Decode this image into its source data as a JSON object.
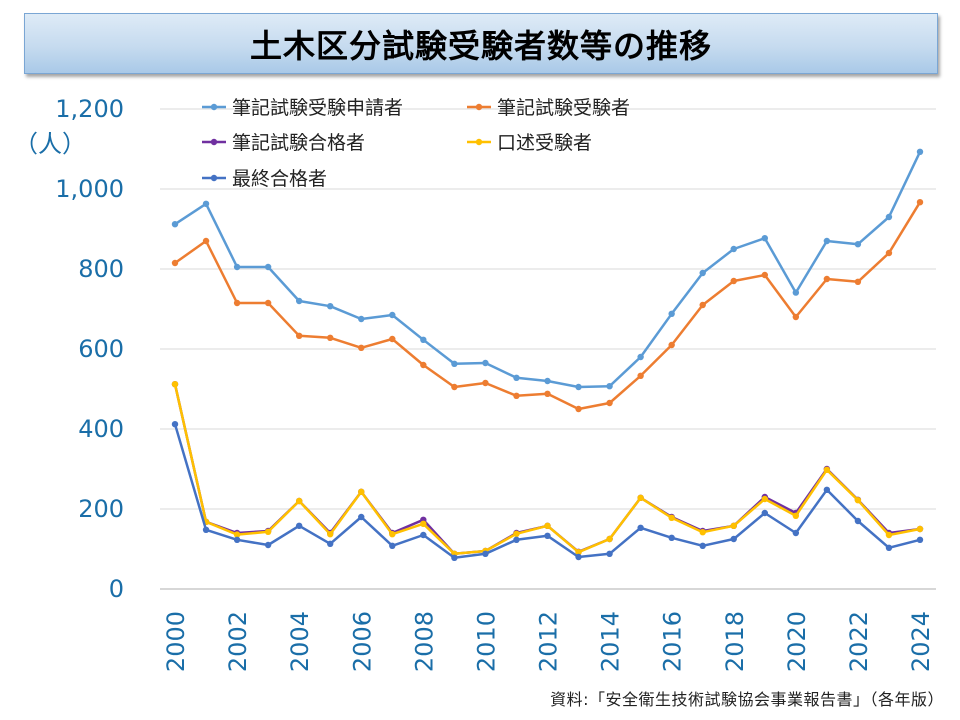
{
  "title": "土木区分試験受験者数等の推移",
  "unit_label": "（人）",
  "source": "資料:「安全衛生技術試験協会事業報告書」（各年版）",
  "chart_data": {
    "type": "line",
    "title": "土木区分試験受験者数等の推移",
    "xlabel": "",
    "ylabel": "（人）",
    "ylim": [
      0,
      1200
    ],
    "yticks": [
      0,
      200,
      400,
      600,
      800,
      1000,
      1200
    ],
    "ytick_labels": [
      "0",
      "200",
      "400",
      "600",
      "800",
      "1,000",
      "1,200"
    ],
    "x": [
      2000,
      2001,
      2002,
      2003,
      2004,
      2005,
      2006,
      2007,
      2008,
      2009,
      2010,
      2011,
      2012,
      2013,
      2014,
      2015,
      2016,
      2017,
      2018,
      2019,
      2020,
      2021,
      2022,
      2023,
      2024
    ],
    "xtick_labels": [
      "2000",
      "2002",
      "2004",
      "2006",
      "2008",
      "2010",
      "2012",
      "2014",
      "2016",
      "2018",
      "2020",
      "2022",
      "2024"
    ],
    "grid": true,
    "legend_position": "top",
    "series": [
      {
        "name": "筆記試験受験申請者",
        "color": "#5b9bd5",
        "values": [
          912,
          963,
          805,
          805,
          720,
          707,
          675,
          685,
          623,
          563,
          565,
          528,
          520,
          505,
          507,
          580,
          688,
          790,
          850,
          877,
          741,
          870,
          862,
          930,
          1093
        ]
      },
      {
        "name": "筆記試験受験者",
        "color": "#ed7d31",
        "values": [
          815,
          870,
          715,
          715,
          633,
          628,
          603,
          625,
          560,
          505,
          515,
          483,
          488,
          450,
          465,
          533,
          610,
          710,
          770,
          785,
          680,
          775,
          768,
          840,
          967
        ]
      },
      {
        "name": "筆記試験合格者",
        "color": "#7030a0",
        "values": [
          512,
          168,
          140,
          145,
          220,
          140,
          243,
          140,
          173,
          88,
          95,
          140,
          158,
          93,
          125,
          228,
          180,
          145,
          158,
          230,
          190,
          300,
          223,
          140,
          150
        ]
      },
      {
        "name": "口述受験者",
        "color": "#ffc000",
        "values": [
          512,
          168,
          136,
          143,
          220,
          137,
          243,
          137,
          163,
          88,
          95,
          138,
          158,
          92,
          125,
          228,
          178,
          142,
          158,
          225,
          183,
          298,
          222,
          135,
          150
        ]
      },
      {
        "name": "最終合格者",
        "color": "#4472c4",
        "values": [
          412,
          148,
          123,
          110,
          158,
          113,
          180,
          108,
          135,
          78,
          88,
          123,
          133,
          80,
          88,
          153,
          128,
          108,
          125,
          190,
          140,
          248,
          170,
          103,
          123
        ]
      }
    ]
  }
}
